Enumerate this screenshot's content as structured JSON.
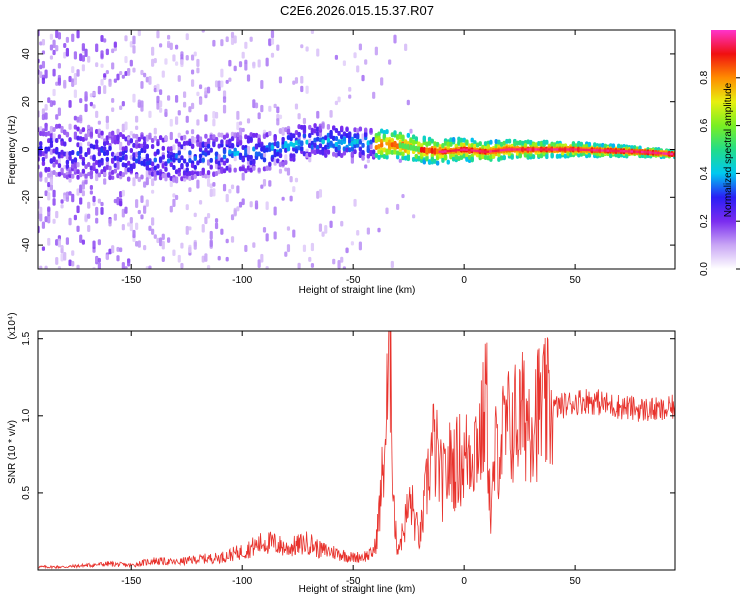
{
  "page": {
    "title": "C2E6.2026.015.15.37.R07"
  },
  "chart_data": [
    {
      "type": "heatmap",
      "title": "C2E6.2026.015.15.37.R07",
      "xlabel": "Height of straight line (km)",
      "ylabel": "Frequency (Hz)",
      "xlim": [
        -192,
        95
      ],
      "ylim": [
        -50,
        50
      ],
      "x_ticks": [
        -150,
        -100,
        -50,
        0,
        50
      ],
      "y_ticks": [
        -40,
        -20,
        0,
        20,
        40
      ],
      "center_track": [
        {
          "x": -192,
          "f": 0
        },
        {
          "x": -150,
          "f": -3
        },
        {
          "x": -130,
          "f": -4
        },
        {
          "x": -110,
          "f": -2
        },
        {
          "x": -90,
          "f": -1
        },
        {
          "x": -70,
          "f": 4
        },
        {
          "x": -55,
          "f": 3
        },
        {
          "x": -40,
          "f": 2
        },
        {
          "x": -30,
          "f": 2
        },
        {
          "x": -20,
          "f": 0
        },
        {
          "x": -10,
          "f": -1
        },
        {
          "x": 0,
          "f": 0
        },
        {
          "x": 10,
          "f": -1
        },
        {
          "x": 20,
          "f": 0
        },
        {
          "x": 50,
          "f": 0
        },
        {
          "x": 80,
          "f": -1
        },
        {
          "x": 95,
          "f": -2
        }
      ],
      "colorbar": {
        "label": "Normalized spectral amplitude",
        "range": [
          0,
          1
        ],
        "ticks": [
          0.0,
          0.2,
          0.4,
          0.6,
          0.8
        ],
        "tick_labels": [
          "0.0",
          "0.2",
          "0.4",
          "0.6",
          "0.8"
        ],
        "colors": [
          "#ffffff",
          "#c9a6f5",
          "#7a2cf0",
          "#2a1ef5",
          "#00c8f0",
          "#22dd88",
          "#7aef22",
          "#e8ef10",
          "#ff8c00",
          "#f01010",
          "#ff33cc"
        ]
      }
    },
    {
      "type": "line",
      "xlabel": "Height of straight line (km)",
      "ylabel": "SNR (10 * v/v)",
      "y_multiplier": "(x10⁴)",
      "xlim": [
        -192,
        95
      ],
      "ylim": [
        0,
        1.55
      ],
      "x_ticks": [
        -150,
        -100,
        -50,
        0,
        50
      ],
      "y_ticks": [
        0.5,
        1.0,
        1.5
      ],
      "y_tick_labels": [
        "0.5",
        "1.0",
        "1.5"
      ],
      "color": "#e8322c",
      "series": [
        {
          "name": "SNR",
          "x": [
            -192,
            -180,
            -170,
            -160,
            -150,
            -140,
            -130,
            -120,
            -110,
            -100,
            -95,
            -90,
            -85,
            -80,
            -75,
            -70,
            -65,
            -60,
            -55,
            -50,
            -45,
            -42,
            -40,
            -38,
            -36,
            -34,
            -33,
            -32,
            -31,
            -30,
            -28,
            -26,
            -24,
            -22,
            -20,
            -18,
            -16,
            -14,
            -12,
            -10,
            -8,
            -6,
            -4,
            -2,
            0,
            2,
            4,
            6,
            8,
            10,
            12,
            14,
            16,
            18,
            20,
            25,
            30,
            35,
            40,
            45,
            50,
            55,
            60,
            65,
            70,
            75,
            80,
            85,
            90,
            95
          ],
          "values": [
            0.02,
            0.02,
            0.03,
            0.04,
            0.03,
            0.06,
            0.05,
            0.07,
            0.08,
            0.12,
            0.15,
            0.18,
            0.17,
            0.14,
            0.16,
            0.18,
            0.13,
            0.12,
            0.1,
            0.08,
            0.09,
            0.1,
            0.15,
            0.4,
            0.75,
            1.2,
            1.55,
            0.55,
            0.25,
            0.14,
            0.22,
            0.35,
            0.45,
            0.3,
            0.2,
            0.4,
            0.65,
            0.8,
            0.72,
            0.55,
            0.62,
            0.7,
            0.68,
            0.72,
            0.7,
            0.78,
            0.8,
            0.85,
            0.88,
            1.15,
            0.3,
            0.75,
            0.82,
            0.88,
            0.92,
            0.98,
            1.02,
            1.04,
            1.05,
            1.07,
            1.09,
            1.1,
            1.09,
            1.07,
            1.06,
            1.05,
            1.04,
            1.04,
            1.03,
            1.06
          ]
        }
      ]
    }
  ]
}
